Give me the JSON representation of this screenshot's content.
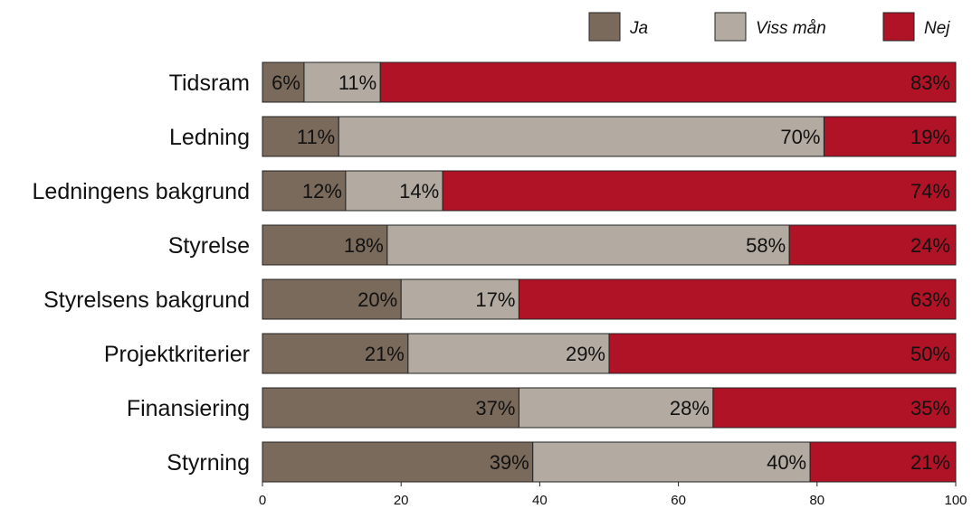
{
  "chart_data": {
    "type": "bar",
    "orientation": "horizontal",
    "stacked": true,
    "categories": [
      "Tidsram",
      "Ledning",
      "Ledningens bakgrund",
      "Styrelse",
      "Styrelsens bakgrund",
      "Projektkriterier",
      "Finansiering",
      "Styrning"
    ],
    "series": [
      {
        "name": "Ja",
        "color": "#7a6a5c",
        "values": [
          6,
          11,
          12,
          18,
          20,
          21,
          37,
          39
        ]
      },
      {
        "name": "Viss mån",
        "color": "#b3aba2",
        "values": [
          11,
          70,
          14,
          58,
          17,
          29,
          28,
          40
        ]
      },
      {
        "name": "Nej",
        "color": "#b01226",
        "values": [
          83,
          19,
          74,
          24,
          63,
          50,
          35,
          21
        ]
      }
    ],
    "value_suffix": "%",
    "xlim": [
      0,
      100
    ],
    "xticks": [
      0,
      20,
      40,
      60,
      80,
      100
    ],
    "legend": "top-right",
    "grid": false
  }
}
